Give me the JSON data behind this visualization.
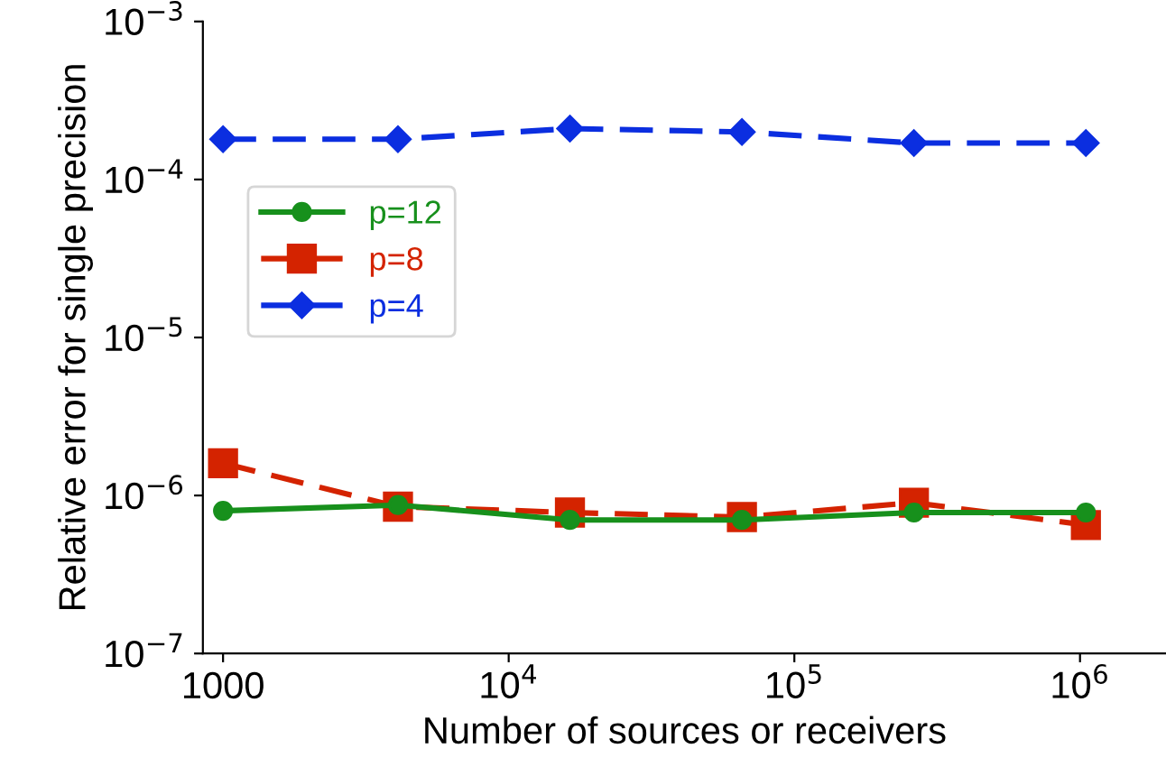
{
  "chart_data": {
    "type": "line",
    "xlabel": "Number of sources or receivers",
    "ylabel": "Relative error for single precision",
    "x": [
      1000,
      4096,
      16384,
      65536,
      262144,
      1048576
    ],
    "series": [
      {
        "name": "p=12",
        "color": "#17901c",
        "marker": "circle",
        "line_style": "solid",
        "values": [
          8e-07,
          8.7e-07,
          7e-07,
          7e-07,
          7.8e-07,
          7.8e-07
        ]
      },
      {
        "name": "p=8",
        "color": "#d42300",
        "marker": "square",
        "line_style": "dashed",
        "values": [
          1.6e-06,
          8.5e-07,
          7.8e-07,
          7.3e-07,
          9e-07,
          6.5e-07
        ]
      },
      {
        "name": "p=4",
        "color": "#0b2ee0",
        "marker": "diamond",
        "line_style": "dashed",
        "values": [
          0.00018,
          0.00018,
          0.00021,
          0.0002,
          0.00017,
          0.00017
        ]
      }
    ],
    "log": "xy",
    "xlim": [
      850,
      2000000
    ],
    "ylim": [
      1e-07,
      0.001
    ],
    "xticks": [
      1000,
      {
        "value": 10000,
        "label": "10$^{4}$"
      },
      {
        "value": 100000,
        "label": "10$^{5}$"
      },
      {
        "value": 1000000,
        "label": "10$^{6}$"
      }
    ],
    "yticks": [
      {
        "value": 1e-07,
        "label": "10$^{−7}$"
      },
      {
        "value": 1e-06,
        "label": "10$^{−6}$"
      },
      {
        "value": 1e-05,
        "label": "10$^{−5}$"
      },
      {
        "value": 0.0001,
        "label": "10$^{−4}$"
      },
      {
        "value": 0.001,
        "label": "10$^{−3}$"
      }
    ],
    "grid": false,
    "legend": "left"
  }
}
